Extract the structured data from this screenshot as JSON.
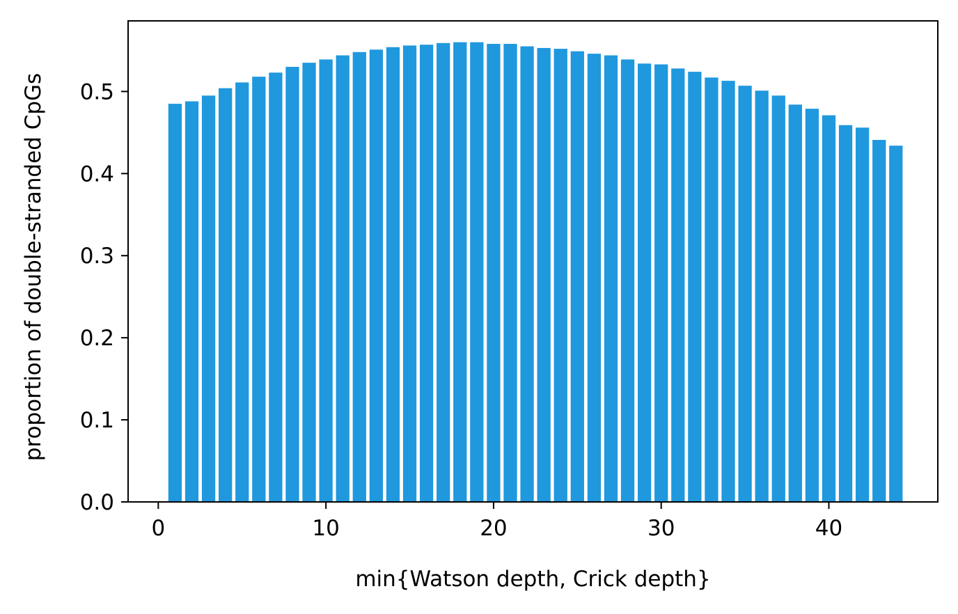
{
  "chart_data": {
    "type": "bar",
    "title": "",
    "xlabel": "min{Watson depth, Crick depth}",
    "ylabel": "proportion of double-stranded CpGs",
    "xlim": [
      -1.8,
      46.5
    ],
    "ylim": [
      0,
      0.586
    ],
    "x_ticks": [
      0,
      10,
      20,
      30,
      40
    ],
    "y_ticks": [
      0.0,
      0.1,
      0.2,
      0.3,
      0.4,
      0.5
    ],
    "x_tick_labels": [
      "0",
      "10",
      "20",
      "30",
      "40"
    ],
    "y_tick_labels": [
      "0.0",
      "0.1",
      "0.2",
      "0.3",
      "0.4",
      "0.5"
    ],
    "bar_color": "#1f98de",
    "x": [
      1,
      2,
      3,
      4,
      5,
      6,
      7,
      8,
      9,
      10,
      11,
      12,
      13,
      14,
      15,
      16,
      17,
      18,
      19,
      20,
      21,
      22,
      23,
      24,
      25,
      26,
      27,
      28,
      29,
      30,
      31,
      32,
      33,
      34,
      35,
      36,
      37,
      38,
      39,
      40,
      41,
      42,
      43,
      44
    ],
    "values": [
      0.485,
      0.488,
      0.495,
      0.504,
      0.511,
      0.518,
      0.523,
      0.53,
      0.535,
      0.539,
      0.544,
      0.548,
      0.551,
      0.554,
      0.556,
      0.557,
      0.559,
      0.56,
      0.56,
      0.558,
      0.558,
      0.555,
      0.553,
      0.552,
      0.549,
      0.546,
      0.544,
      0.539,
      0.534,
      0.533,
      0.528,
      0.524,
      0.517,
      0.513,
      0.507,
      0.501,
      0.495,
      0.484,
      0.479,
      0.471,
      0.459,
      0.456,
      0.441,
      0.434
    ],
    "grid": false,
    "legend": "none"
  }
}
